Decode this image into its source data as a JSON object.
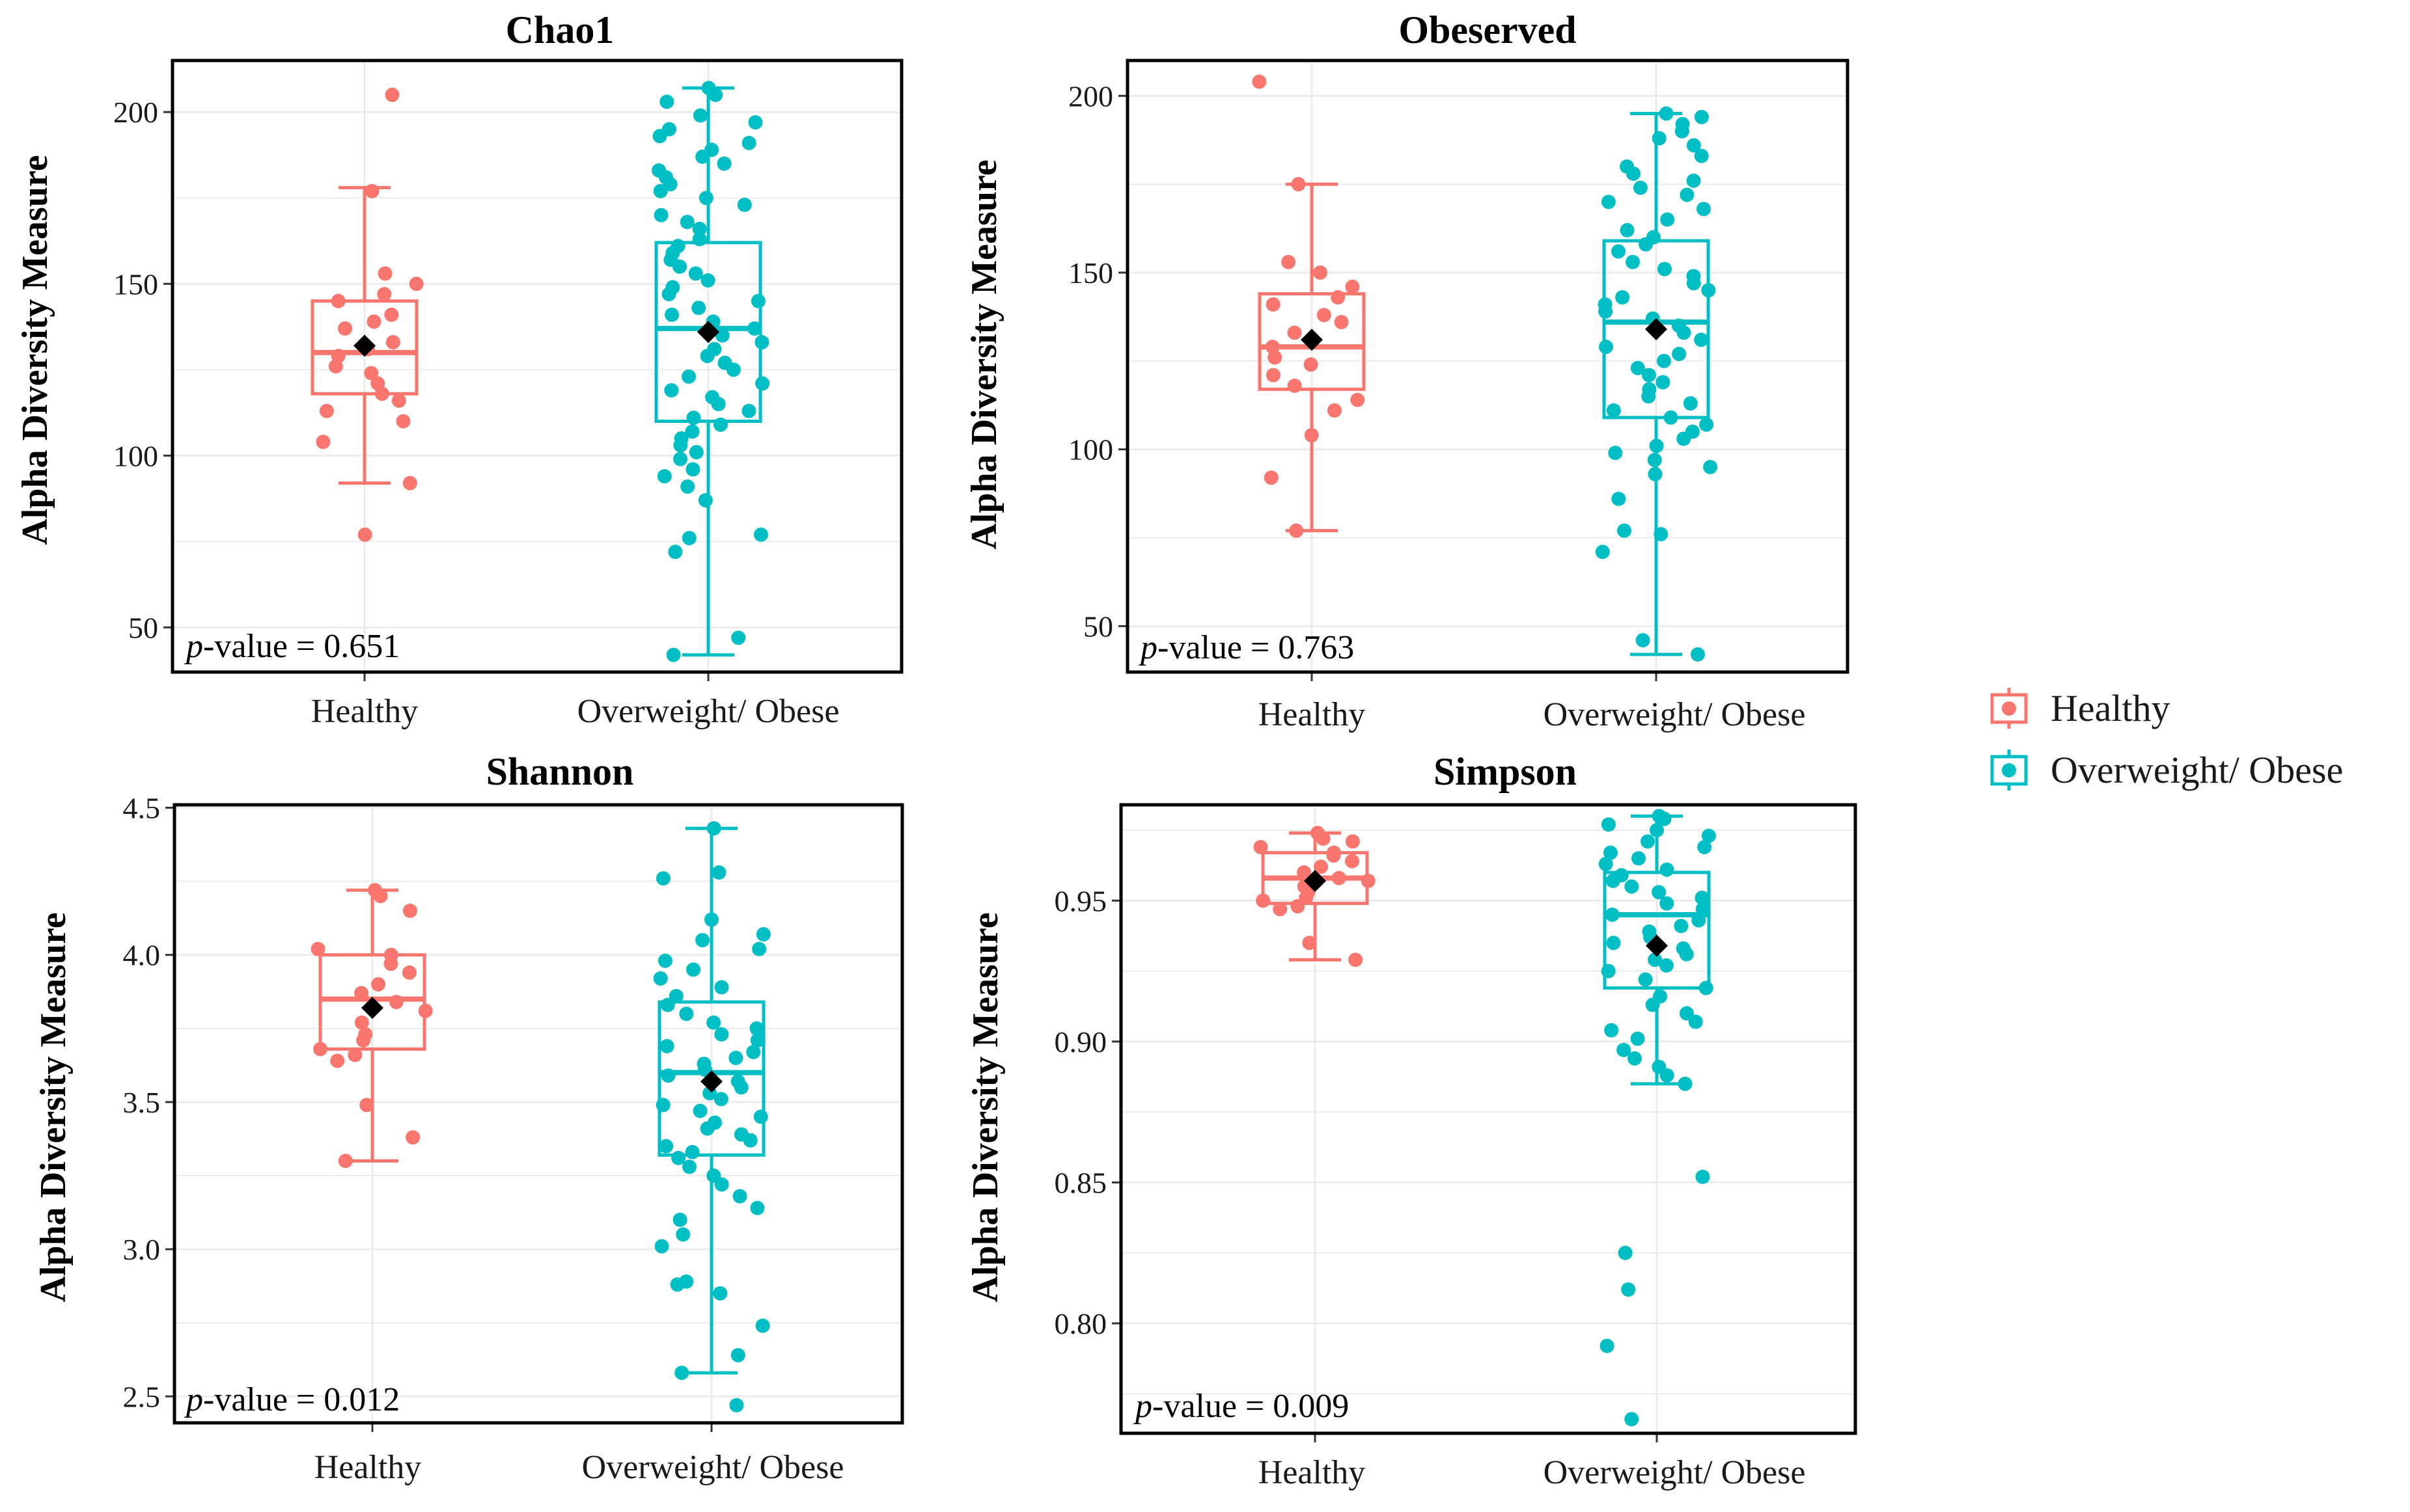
{
  "colors": {
    "healthy": "#F8766D",
    "obese": "#00BFC4",
    "mean": "#000000",
    "grid": "#EBEBEB"
  },
  "legend": {
    "items": [
      {
        "label": "Healthy",
        "color": "#F8766D"
      },
      {
        "label": "Overweight/ Obese",
        "color": "#00BFC4"
      }
    ]
  },
  "chart_data": [
    {
      "type": "box",
      "title": "Chao1",
      "ylabel": "Alpha Diversity Measure",
      "ylim": [
        37,
        215
      ],
      "yticks": [
        50,
        100,
        150,
        200
      ],
      "ytick_labels": [
        "50",
        "100",
        "150",
        "200"
      ],
      "pvalue_prefix": "p",
      "pvalue_text": "-value = 0.651",
      "categories": [
        "Healthy",
        "Overweight/ Obese"
      ],
      "groups": [
        {
          "name": "Healthy",
          "q1": 118,
          "median": 130,
          "q3": 145,
          "lower": 92,
          "upper": 178,
          "mean": 132,
          "points": [
            205,
            177,
            153,
            150,
            147,
            145,
            141,
            139,
            137,
            133,
            131,
            129,
            126,
            124,
            121,
            118,
            116,
            113,
            110,
            104,
            92,
            77
          ]
        },
        {
          "name": "Overweight/ Obese",
          "q1": 110,
          "median": 137,
          "q3": 162,
          "lower": 42,
          "upper": 207,
          "mean": 136,
          "points": [
            207,
            205,
            203,
            199,
            197,
            195,
            193,
            191,
            189,
            187,
            185,
            183,
            181,
            179,
            177,
            175,
            173,
            170,
            168,
            166,
            163,
            161,
            159,
            157,
            155,
            153,
            151,
            149,
            147,
            145,
            143,
            141,
            139,
            137,
            135,
            133,
            131,
            129,
            127,
            125,
            123,
            121,
            119,
            117,
            115,
            113,
            111,
            109,
            107,
            105,
            103,
            101,
            99,
            96,
            94,
            91,
            87,
            77,
            76,
            72,
            47,
            42
          ]
        }
      ]
    },
    {
      "type": "box",
      "title": "Obeserved",
      "ylabel": "Alpha Diversity Measure",
      "ylim": [
        37,
        210
      ],
      "yticks": [
        50,
        100,
        150,
        200
      ],
      "ytick_labels": [
        "50",
        "100",
        "150",
        "200"
      ],
      "pvalue_prefix": "p",
      "pvalue_text": "-value = 0.763",
      "categories": [
        "Healthy",
        "Overweight/ Obese"
      ],
      "groups": [
        {
          "name": "Healthy",
          "q1": 117,
          "median": 129,
          "q3": 144,
          "lower": 77,
          "upper": 175,
          "mean": 131,
          "points": [
            204,
            175,
            153,
            150,
            146,
            143,
            141,
            138,
            136,
            133,
            131,
            129,
            126,
            124,
            121,
            118,
            114,
            111,
            104,
            92,
            77
          ]
        },
        {
          "name": "Overweight/ Obese",
          "q1": 109,
          "median": 136,
          "q3": 159,
          "lower": 42,
          "upper": 195,
          "mean": 134,
          "points": [
            195,
            194,
            192,
            190,
            188,
            186,
            183,
            180,
            178,
            176,
            174,
            172,
            170,
            168,
            165,
            162,
            160,
            158,
            156,
            153,
            151,
            149,
            147,
            145,
            143,
            141,
            139,
            137,
            135,
            133,
            131,
            129,
            127,
            125,
            123,
            121,
            119,
            117,
            115,
            113,
            111,
            109,
            107,
            105,
            103,
            101,
            99,
            97,
            95,
            93,
            86,
            77,
            76,
            71,
            46,
            42
          ]
        }
      ]
    },
    {
      "type": "box",
      "title": "Shannon",
      "ylabel": "Alpha Diversity Measure",
      "ylim": [
        2.41,
        4.51
      ],
      "yticks": [
        2.5,
        3.0,
        3.5,
        4.0,
        4.5
      ],
      "ytick_labels": [
        "2.5",
        "3.0",
        "3.5",
        "4.0",
        "4.5"
      ],
      "pvalue_prefix": "p",
      "pvalue_text": "-value = 0.012",
      "categories": [
        "Healthy",
        "Overweight/ Obese"
      ],
      "groups": [
        {
          "name": "Healthy",
          "q1": 3.68,
          "median": 3.85,
          "q3": 4.0,
          "lower": 3.3,
          "upper": 4.22,
          "mean": 3.82,
          "points": [
            4.22,
            4.2,
            4.15,
            4.02,
            4.0,
            3.97,
            3.94,
            3.9,
            3.87,
            3.84,
            3.81,
            3.77,
            3.73,
            3.71,
            3.68,
            3.66,
            3.64,
            3.49,
            3.38,
            3.3
          ]
        },
        {
          "name": "Overweight/ Obese",
          "q1": 3.32,
          "median": 3.6,
          "q3": 3.84,
          "lower": 2.58,
          "upper": 4.43,
          "mean": 3.57,
          "points": [
            4.43,
            4.28,
            4.26,
            4.12,
            4.07,
            4.05,
            4.02,
            3.98,
            3.95,
            3.92,
            3.89,
            3.86,
            3.83,
            3.8,
            3.77,
            3.75,
            3.73,
            3.71,
            3.69,
            3.67,
            3.65,
            3.63,
            3.61,
            3.59,
            3.57,
            3.55,
            3.53,
            3.51,
            3.49,
            3.47,
            3.45,
            3.43,
            3.41,
            3.39,
            3.37,
            3.35,
            3.33,
            3.31,
            3.28,
            3.25,
            3.22,
            3.18,
            3.14,
            3.1,
            3.05,
            3.01,
            2.89,
            2.88,
            2.85,
            2.74,
            2.64,
            2.58,
            2.47
          ]
        }
      ]
    },
    {
      "type": "box",
      "title": "Simpson",
      "ylabel": "Alpha Diversity Measure",
      "ylim": [
        0.761,
        0.984
      ],
      "yticks": [
        0.8,
        0.85,
        0.9,
        0.95
      ],
      "ytick_labels": [
        "0.80",
        "0.85",
        "0.90",
        "0.95"
      ],
      "pvalue_prefix": "p",
      "pvalue_text": "-value = 0.009",
      "categories": [
        "Healthy",
        "Overweight/ Obese"
      ],
      "groups": [
        {
          "name": "Healthy",
          "q1": 0.949,
          "median": 0.958,
          "q3": 0.967,
          "lower": 0.929,
          "upper": 0.974,
          "mean": 0.957,
          "points": [
            0.974,
            0.972,
            0.971,
            0.969,
            0.967,
            0.966,
            0.964,
            0.962,
            0.96,
            0.958,
            0.957,
            0.955,
            0.953,
            0.951,
            0.95,
            0.948,
            0.947,
            0.935,
            0.929
          ]
        },
        {
          "name": "Overweight/ Obese",
          "q1": 0.919,
          "median": 0.945,
          "q3": 0.96,
          "lower": 0.885,
          "upper": 0.98,
          "mean": 0.934,
          "points": [
            0.98,
            0.979,
            0.977,
            0.975,
            0.973,
            0.971,
            0.969,
            0.967,
            0.965,
            0.963,
            0.961,
            0.959,
            0.957,
            0.955,
            0.953,
            0.951,
            0.949,
            0.947,
            0.945,
            0.943,
            0.941,
            0.939,
            0.937,
            0.935,
            0.933,
            0.931,
            0.929,
            0.927,
            0.925,
            0.922,
            0.919,
            0.916,
            0.913,
            0.91,
            0.907,
            0.904,
            0.901,
            0.897,
            0.894,
            0.891,
            0.888,
            0.885,
            0.852,
            0.825,
            0.812,
            0.792,
            0.766
          ]
        }
      ]
    }
  ]
}
